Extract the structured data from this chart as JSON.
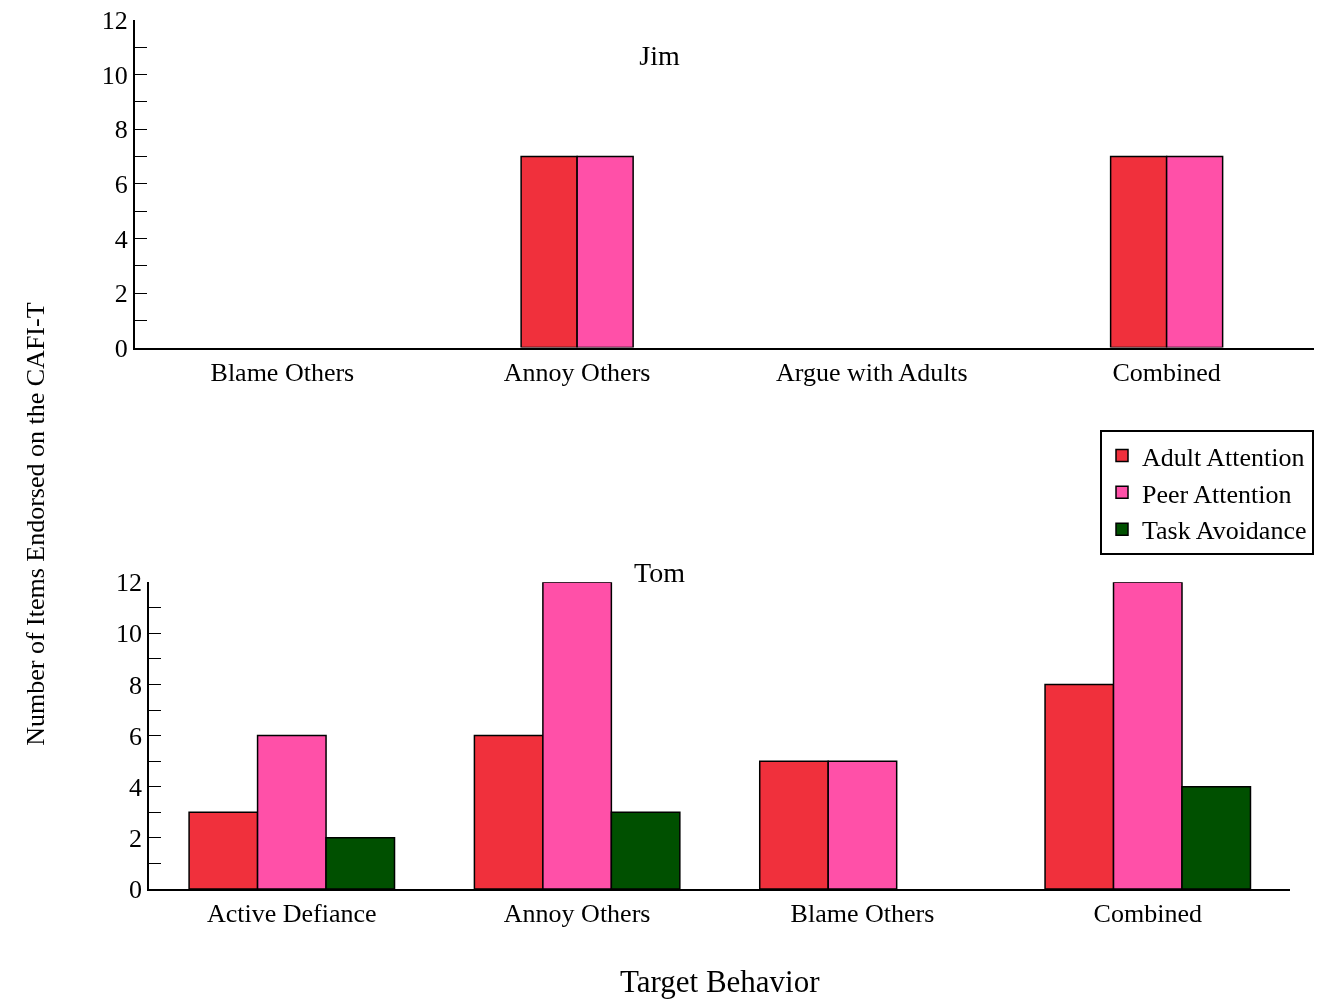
{
  "chart_data": [
    {
      "type": "bar",
      "title": "Jim",
      "ylabel": "Number of Items Endorsed on the CAFI-T",
      "categories": [
        "Blame Others",
        "Annoy Others",
        "Argue with Adults",
        "Combined"
      ],
      "series": [
        {
          "color": "#f0303c",
          "values": [
            null,
            7,
            null,
            7
          ]
        },
        {
          "color": "#ff50a8",
          "values": [
            null,
            7,
            null,
            7
          ]
        }
      ],
      "ylim": [
        0,
        12
      ],
      "yticks": [
        0,
        {
          "value": 1,
          "label": null
        },
        2,
        {
          "value": 3,
          "label": null
        },
        4,
        {
          "value": 5,
          "label": null
        },
        6,
        {
          "value": 7,
          "label": null
        },
        8,
        {
          "value": 9,
          "label": null
        },
        10,
        {
          "value": 11,
          "label": null
        },
        12
      ],
      "grid": false,
      "legend": false
    },
    {
      "type": "bar",
      "title": "Tom",
      "xlabel": "Target Behavior",
      "categories": [
        "Active Defiance",
        "Annoy Others",
        "Blame Others",
        "Combined"
      ],
      "series": [
        {
          "name": "Adult Attention",
          "color": "#f0303c",
          "values": [
            3,
            6,
            5,
            8
          ]
        },
        {
          "name": "Peer Attention",
          "color": "#ff50a8",
          "values": [
            6,
            12,
            5,
            12
          ]
        },
        {
          "name": "Task Avoidance",
          "color": "#005000",
          "values": [
            2,
            3,
            null,
            4
          ]
        }
      ],
      "ylim": [
        0,
        12
      ],
      "yticks": [
        0,
        {
          "value": 1,
          "label": null
        },
        2,
        {
          "value": 3,
          "label": null
        },
        4,
        {
          "value": 5,
          "label": null
        },
        6,
        {
          "value": 7,
          "label": null
        },
        8,
        {
          "value": 9,
          "label": null
        },
        10,
        {
          "value": 11,
          "label": null
        },
        12
      ],
      "grid": false,
      "legend": "top right"
    }
  ]
}
